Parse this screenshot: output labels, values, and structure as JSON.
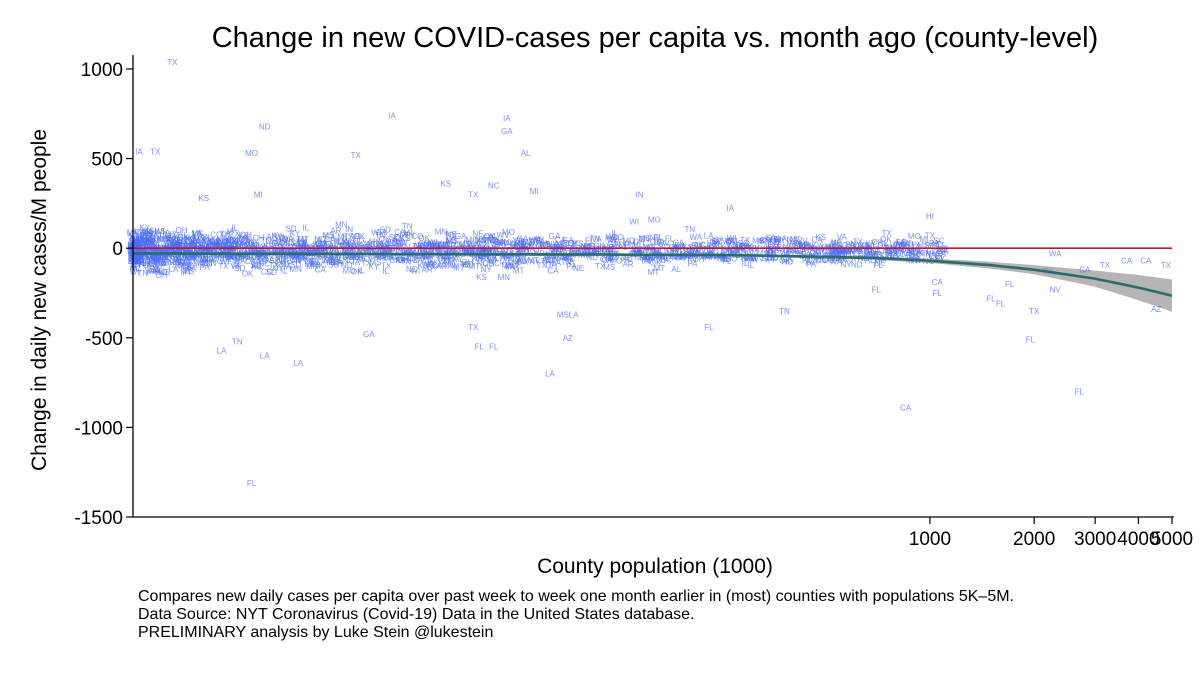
{
  "chart_data": {
    "type": "scatter",
    "title": "Change in new COVID-cases per capita vs. month ago (county-level)",
    "xlabel": "County population (1000)",
    "ylabel": "Change in daily new cases/M people",
    "x_scale": "log",
    "xlim": [
      5,
      5000
    ],
    "ylim": [
      -1500,
      1050
    ],
    "x_ticks": [
      1000,
      2000,
      3000,
      4000,
      5000
    ],
    "y_ticks": [
      1000,
      500,
      0,
      -500,
      -1000,
      -1500
    ],
    "reference_line": {
      "y": 0,
      "color": "#c0143c"
    },
    "fit_line": {
      "color": "#2e6b6b",
      "band_color": "#a8a8a8",
      "points": [
        [
          5,
          -30
        ],
        [
          100,
          -35
        ],
        [
          300,
          -40
        ],
        [
          700,
          -55
        ],
        [
          1000,
          -70
        ],
        [
          1500,
          -95
        ],
        [
          2000,
          -120
        ],
        [
          3000,
          -170
        ],
        [
          4000,
          -220
        ],
        [
          5000,
          -265
        ]
      ],
      "band_halfwidth": [
        [
          5,
          10
        ],
        [
          300,
          6
        ],
        [
          1000,
          12
        ],
        [
          2000,
          25
        ],
        [
          3000,
          45
        ],
        [
          5000,
          90
        ]
      ]
    },
    "labeled_points": [
      {
        "label": "TX",
        "x": 6.5,
        "y": 1040
      },
      {
        "label": "IA",
        "x": 28,
        "y": 740
      },
      {
        "label": "IA",
        "x": 60,
        "y": 725
      },
      {
        "label": "GA",
        "x": 60,
        "y": 655
      },
      {
        "label": "ND",
        "x": 12,
        "y": 680
      },
      {
        "label": "AL",
        "x": 68,
        "y": 530
      },
      {
        "label": "TX",
        "x": 22,
        "y": 520
      },
      {
        "label": "MO",
        "x": 11,
        "y": 530
      },
      {
        "label": "IA",
        "x": 5.2,
        "y": 540
      },
      {
        "label": "TX",
        "x": 5.8,
        "y": 540
      },
      {
        "label": "KS",
        "x": 40,
        "y": 360
      },
      {
        "label": "NC",
        "x": 55,
        "y": 350
      },
      {
        "label": "TX",
        "x": 48,
        "y": 300
      },
      {
        "label": "MI",
        "x": 72,
        "y": 320
      },
      {
        "label": "IN",
        "x": 145,
        "y": 300
      },
      {
        "label": "IA",
        "x": 265,
        "y": 225
      },
      {
        "label": "HI",
        "x": 1000,
        "y": 180
      },
      {
        "label": "MO",
        "x": 160,
        "y": 160
      },
      {
        "label": "WI",
        "x": 140,
        "y": 150
      },
      {
        "label": "MI",
        "x": 11.5,
        "y": 300
      },
      {
        "label": "KS",
        "x": 8,
        "y": 280
      },
      {
        "label": "TX",
        "x": 1000,
        "y": 70
      },
      {
        "label": "TX",
        "x": 750,
        "y": 85
      },
      {
        "label": "WA",
        "x": 2300,
        "y": -30
      },
      {
        "label": "CA",
        "x": 3700,
        "y": -70
      },
      {
        "label": "CA",
        "x": 4200,
        "y": -70
      },
      {
        "label": "TX",
        "x": 3200,
        "y": -95
      },
      {
        "label": "CA",
        "x": 2800,
        "y": -120
      },
      {
        "label": "TX",
        "x": 2200,
        "y": -130
      },
      {
        "label": "TX",
        "x": 4800,
        "y": -95
      },
      {
        "label": "NV",
        "x": 2300,
        "y": -230
      },
      {
        "label": "FL",
        "x": 1700,
        "y": -200
      },
      {
        "label": "FL",
        "x": 1500,
        "y": -280
      },
      {
        "label": "FL",
        "x": 1600,
        "y": -310
      },
      {
        "label": "TX",
        "x": 2000,
        "y": -350
      },
      {
        "label": "AZ",
        "x": 4500,
        "y": -340
      },
      {
        "label": "FL",
        "x": 1950,
        "y": -510
      },
      {
        "label": "FL",
        "x": 2700,
        "y": -800
      },
      {
        "label": "CA",
        "x": 850,
        "y": -890
      },
      {
        "label": "LA",
        "x": 80,
        "y": -700
      },
      {
        "label": "AZ",
        "x": 90,
        "y": -500
      },
      {
        "label": "FL",
        "x": 50,
        "y": -550
      },
      {
        "label": "FL",
        "x": 55,
        "y": -550
      },
      {
        "label": "LA",
        "x": 12,
        "y": -600
      },
      {
        "label": "LA",
        "x": 15,
        "y": -640
      },
      {
        "label": "TN",
        "x": 10,
        "y": -520
      },
      {
        "label": "LA",
        "x": 9,
        "y": -570
      },
      {
        "label": "GA",
        "x": 24,
        "y": -480
      },
      {
        "label": "TX",
        "x": 48,
        "y": -440
      },
      {
        "label": "FL",
        "x": 11,
        "y": -1310
      },
      {
        "label": "TN",
        "x": 380,
        "y": -350
      },
      {
        "label": "FL",
        "x": 230,
        "y": -440
      },
      {
        "label": "MSLA",
        "x": 90,
        "y": -370
      },
      {
        "label": "CA",
        "x": 1050,
        "y": -190
      },
      {
        "label": "FL",
        "x": 700,
        "y": -230
      },
      {
        "label": "FL",
        "x": 1050,
        "y": -250
      }
    ]
  },
  "caption": {
    "line1": "Compares new daily cases per capita over past week to week one month earlier in (most) counties with populations 5K–5M.",
    "line2": "Data Source: NYT Coronavirus (Covid-19) Data in the United States database.",
    "line3": "PRELIMINARY analysis by Luke Stein @lukestein"
  }
}
